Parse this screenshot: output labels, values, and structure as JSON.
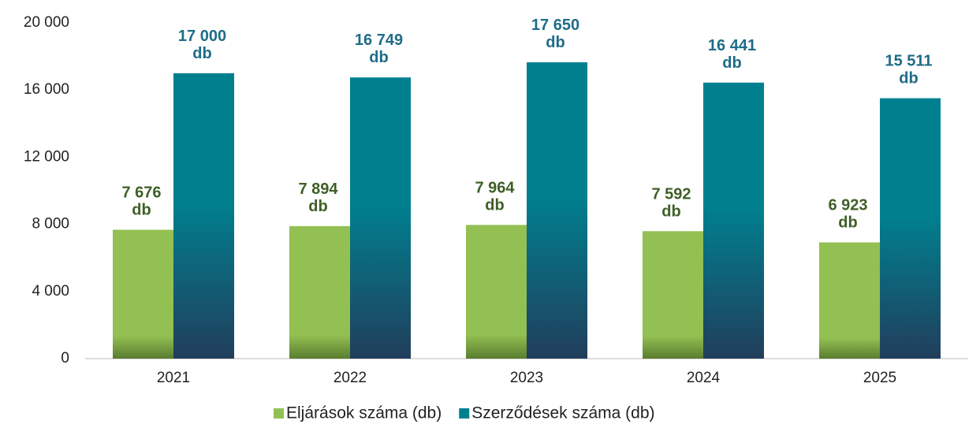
{
  "chart_data": {
    "type": "bar",
    "categories": [
      "2021",
      "2022",
      "2023",
      "2024",
      "2025"
    ],
    "series": [
      {
        "name": "Eljárások száma (db)",
        "color": "#93c052",
        "values": [
          7676,
          7894,
          7964,
          7592,
          6923
        ],
        "value_labels": [
          "7 676\ndb",
          "7 894\ndb",
          "7 964\ndb",
          "7 592\ndb",
          "6 923\ndb"
        ]
      },
      {
        "name": "Szerződések száma (db)",
        "color": "#00808f",
        "values": [
          17000,
          16749,
          17650,
          16441,
          15511
        ],
        "value_labels": [
          "17 000\ndb",
          "16 749\ndb",
          "17 650\ndb",
          "16 441\ndb",
          "15 511\ndb"
        ]
      }
    ],
    "ylim": [
      0,
      20000
    ],
    "yticks": [
      0,
      {
        "value": 4000,
        "label": "4 000"
      },
      {
        "value": 8000,
        "label": "8 000"
      },
      {
        "value": 12000,
        "label": "12 000"
      },
      {
        "value": 16000,
        "label": "16 000"
      },
      {
        "value": 20000,
        "label": "20 000"
      }
    ],
    "grid": false
  }
}
